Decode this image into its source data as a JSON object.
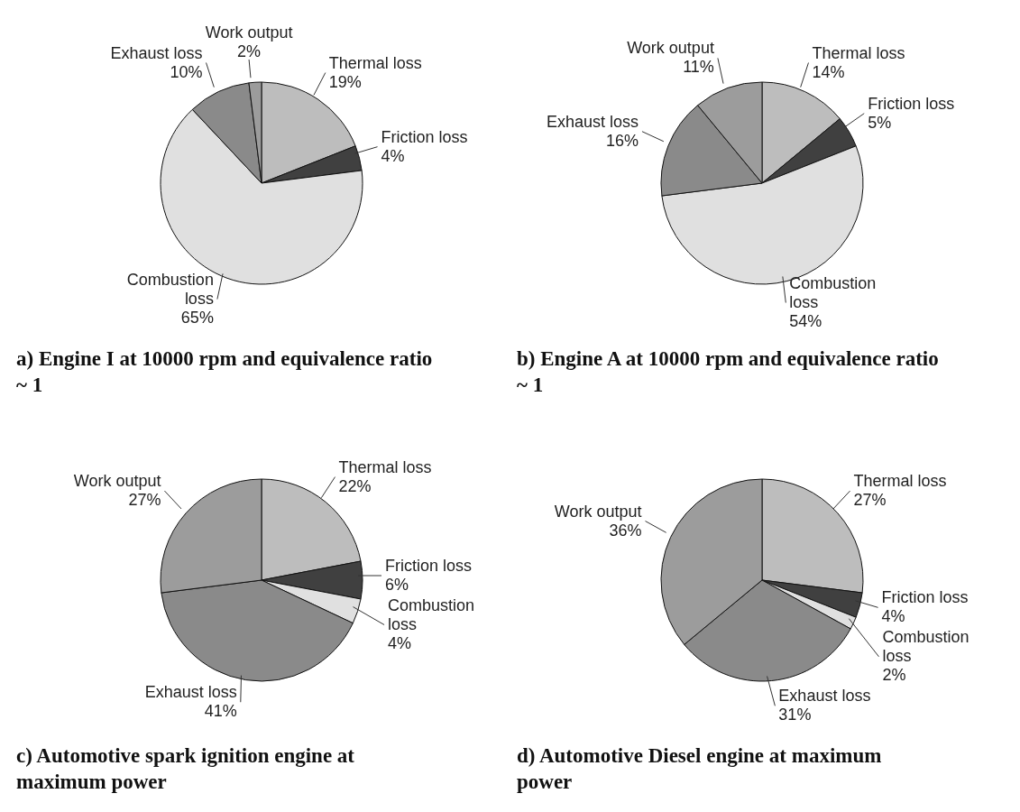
{
  "chart_data": [
    {
      "type": "pie",
      "title": "a) Engine I at 10000 rpm and equivalence ratio ~ 1",
      "categories": [
        "Thermal loss",
        "Friction loss",
        "Combustion loss",
        "Exhaust loss",
        "Work output"
      ],
      "values": [
        19,
        4,
        65,
        10,
        2
      ],
      "value_labels": [
        "19%",
        "4%",
        "65%",
        "10%",
        "2%"
      ],
      "colors": [
        "#bdbdbd",
        "#404040",
        "#e0e0e0",
        "#8a8a8a",
        "#9c9c9c"
      ]
    },
    {
      "type": "pie",
      "title": "b) Engine A at 10000 rpm and equivalence ratio ~ 1",
      "categories": [
        "Thermal loss",
        "Friction loss",
        "Combustion loss",
        "Exhaust loss",
        "Work output"
      ],
      "values": [
        14,
        5,
        54,
        16,
        11
      ],
      "value_labels": [
        "14%",
        "5%",
        "54%",
        "16%",
        "11%"
      ],
      "colors": [
        "#bdbdbd",
        "#404040",
        "#e0e0e0",
        "#8a8a8a",
        "#9c9c9c"
      ]
    },
    {
      "type": "pie",
      "title": "c) Automotive spark ignition engine at maximum power",
      "categories": [
        "Thermal loss",
        "Friction loss",
        "Combustion loss",
        "Exhaust loss",
        "Work output"
      ],
      "values": [
        22,
        6,
        4,
        41,
        27
      ],
      "value_labels": [
        "22%",
        "6%",
        "4%",
        "41%",
        "27%"
      ],
      "colors": [
        "#bdbdbd",
        "#404040",
        "#e0e0e0",
        "#8a8a8a",
        "#9c9c9c"
      ]
    },
    {
      "type": "pie",
      "title": "d) Automotive Diesel engine at maximum power",
      "categories": [
        "Thermal loss",
        "Friction loss",
        "Combustion loss",
        "Exhaust loss",
        "Work output"
      ],
      "values": [
        27,
        4,
        2,
        31,
        36
      ],
      "value_labels": [
        "27%",
        "4%",
        "2%",
        "31%",
        "36%"
      ],
      "colors": [
        "#bdbdbd",
        "#404040",
        "#e0e0e0",
        "#8a8a8a",
        "#9c9c9c"
      ]
    }
  ]
}
